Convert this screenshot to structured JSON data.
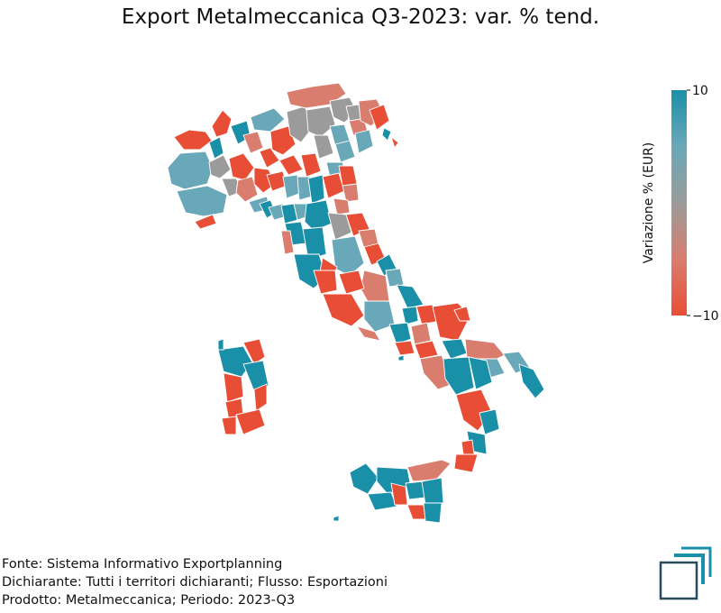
{
  "title": "Export Metalmeccanica Q3-2023: var. % tend.",
  "colors": {
    "positive": "#1a8fa8",
    "neutral": "#9b9b9b",
    "negative": "#e84e36",
    "mid_positive": "#69a8b8",
    "mid_negative": "#d97d6e"
  },
  "legend": {
    "label": "Variazione % (EUR)",
    "max_label": "10",
    "min_label": "−10",
    "range": [
      -10,
      10
    ]
  },
  "footer": {
    "source": "Fonte: Sistema Informativo Exportplanning",
    "declarant": "Dichiarante: Tutti i territori dichiaranti; Flusso: Esportazioni",
    "product": "Prodotto: Metalmeccanica; Periodo: 2023-Q3"
  },
  "logo": "exportplanning-logo-icon"
}
